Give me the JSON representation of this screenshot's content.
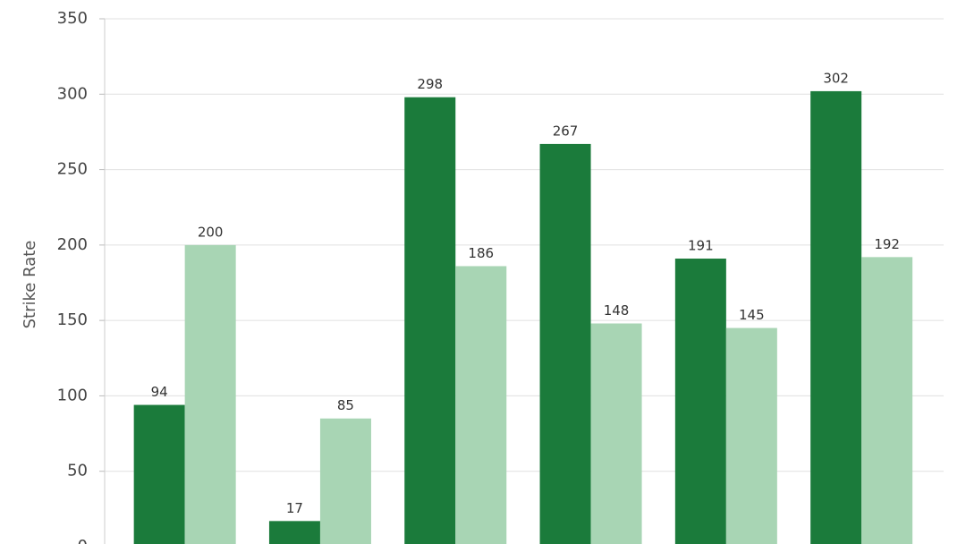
{
  "chart_data": {
    "type": "bar",
    "y_label": "Strike Rate",
    "categories": [
      null,
      null,
      null,
      null,
      null,
      null
    ],
    "series": [
      {
        "color": "#1b7b3b",
        "values": [
          94,
          17,
          298,
          267,
          191,
          302
        ]
      },
      {
        "color": "#a8d5b4",
        "values": [
          200,
          85,
          186,
          148,
          145,
          192
        ]
      }
    ],
    "ylim": [
      0,
      350
    ],
    "yticks": [
      0,
      50,
      100,
      150,
      200,
      250,
      300,
      350
    ],
    "grid": true
  }
}
